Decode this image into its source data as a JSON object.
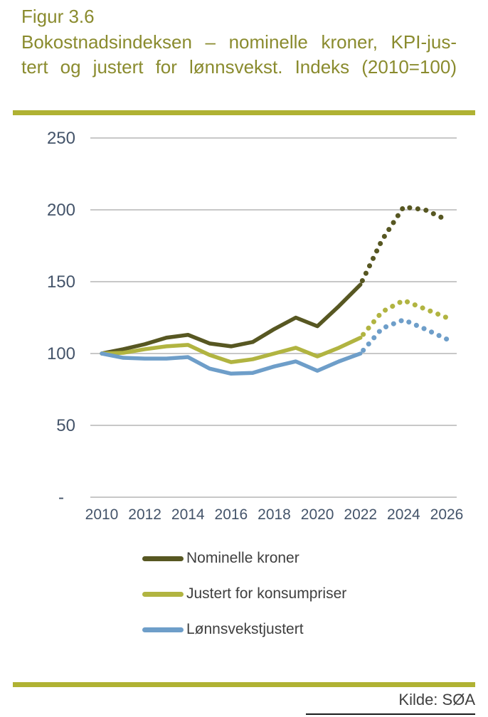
{
  "figure": {
    "label": "Figur 3.6",
    "title_line1": "Bokostnadsindeksen – nominelle kroner, KPI-jus-",
    "title_line2": "tert og justert for lønnsvekst. Indeks (2010=100)"
  },
  "source": "Kilde: SØA",
  "colors": {
    "accent_bar": "#b0b233",
    "title_text": "#8a8b2e",
    "axis_text": "#44546a",
    "gridline": "#c8c8c8",
    "legend_text": "#3f3f3f",
    "series_nominelle": "#575722",
    "series_konsumpriser": "#b1b441",
    "series_lonnsvekst": "#6e9ec9"
  },
  "chart_data": {
    "type": "line",
    "title": "Bokostnadsindeksen – nominelle kroner, KPI-justert og justert for lønnsvekst. Indeks (2010=100)",
    "x": [
      2010,
      2011,
      2012,
      2013,
      2014,
      2015,
      2016,
      2017,
      2018,
      2019,
      2020,
      2021,
      2022,
      2023,
      2024,
      2025,
      2026
    ],
    "x_tick_labels": [
      "2010",
      "2012",
      "2014",
      "2016",
      "2018",
      "2020",
      "2022",
      "2024",
      "2026"
    ],
    "x_tick_years": [
      2010,
      2012,
      2014,
      2016,
      2018,
      2020,
      2022,
      2024,
      2026
    ],
    "y_ticks": [
      250,
      200,
      150,
      100,
      50,
      0
    ],
    "y_tick_labels": [
      "250",
      "200",
      "150",
      "100",
      "50",
      "-"
    ],
    "ylim": [
      0,
      250
    ],
    "grid": "horizontal",
    "legend_position": "bottom",
    "forecast_start_year": 2022,
    "forecast_style": "dotted",
    "series": [
      {
        "name": "Nominelle kroner",
        "color": "#575722",
        "values": [
          100,
          103,
          106.5,
          111,
          113,
          107,
          105,
          108,
          117,
          125,
          119,
          133,
          148,
          179,
          202,
          200,
          193
        ]
      },
      {
        "name": "Justert for konsumpriser",
        "color": "#b1b441",
        "values": [
          100,
          100.5,
          103,
          105,
          106,
          99,
          94,
          96,
          100,
          104,
          98,
          104,
          111,
          129,
          137,
          131,
          125
        ]
      },
      {
        "name": "Lønnsvekstjustert",
        "color": "#6e9ec9",
        "values": [
          100,
          97,
          96.5,
          96.5,
          97.5,
          89.5,
          86,
          86.5,
          91,
          94.5,
          88,
          94.5,
          100,
          117.5,
          123.5,
          117,
          110
        ]
      }
    ]
  }
}
